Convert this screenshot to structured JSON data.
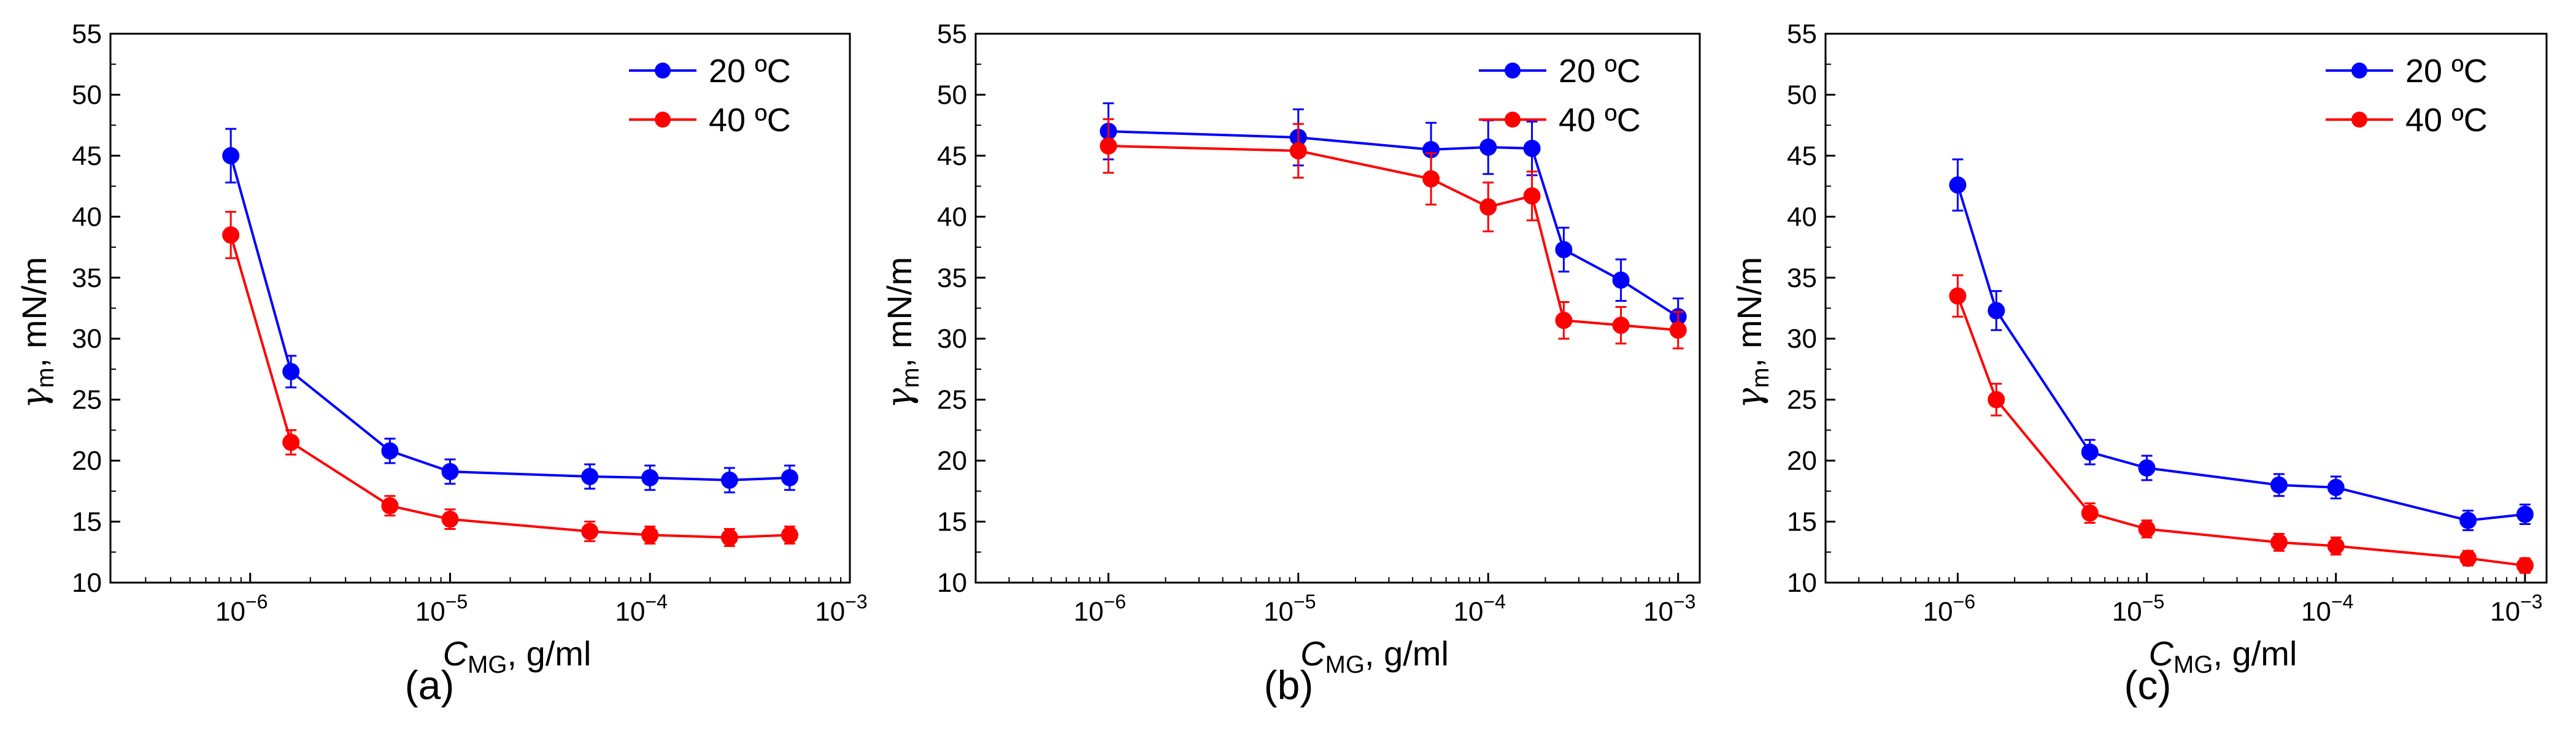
{
  "figure": {
    "panels": [
      "(a)",
      "(b)",
      "(c)"
    ]
  },
  "chart_data": [
    {
      "panel_label": "(a)",
      "type": "line",
      "x_scale": "log",
      "xlim": [
        2e-07,
        0.001
      ],
      "ylim": [
        10,
        55
      ],
      "x_ticks": [
        1e-06,
        1e-05,
        0.0001,
        0.001
      ],
      "x_tick_labels": [
        "10",
        "10",
        "10",
        "10"
      ],
      "x_tick_exponents": [
        "−6",
        "−5",
        "−4",
        "−3"
      ],
      "y_ticks": [
        10,
        15,
        20,
        25,
        30,
        35,
        40,
        45,
        50,
        55
      ],
      "y_tick_labels": [
        "10",
        "15",
        "20",
        "25",
        "30",
        "35",
        "40",
        "45",
        "50",
        "55"
      ],
      "xlabel": "C",
      "xlabel_sub": "MG",
      "xlabel_unit": ", g/ml",
      "ylabel": "γ",
      "ylabel_sub": "m",
      "ylabel_unit": ", mN/m",
      "legend_position": "top-right",
      "series": [
        {
          "name": "20 ºC",
          "color": "#0000ff",
          "x": [
            8e-07,
            1.6e-06,
            5e-06,
            1e-05,
            5e-05,
            0.0001,
            0.00025,
            0.0005
          ],
          "y": [
            45.0,
            27.3,
            20.8,
            19.1,
            18.7,
            18.6,
            18.4,
            18.6
          ],
          "err": [
            2.2,
            1.3,
            1.0,
            1.0,
            1.0,
            1.0,
            1.0,
            1.0
          ]
        },
        {
          "name": "40 ºC",
          "color": "#ff0000",
          "x": [
            8e-07,
            1.6e-06,
            5e-06,
            1e-05,
            5e-05,
            0.0001,
            0.00025,
            0.0005
          ],
          "y": [
            38.5,
            21.5,
            16.3,
            15.2,
            14.2,
            13.9,
            13.7,
            13.9
          ],
          "err": [
            1.9,
            1.0,
            0.8,
            0.8,
            0.8,
            0.7,
            0.7,
            0.7
          ]
        }
      ]
    },
    {
      "panel_label": "(b)",
      "type": "line",
      "x_scale": "log",
      "xlim": [
        2e-07,
        0.0013
      ],
      "ylim": [
        10,
        55
      ],
      "x_ticks": [
        1e-06,
        1e-05,
        0.0001,
        0.001
      ],
      "x_tick_labels": [
        "10",
        "10",
        "10",
        "10"
      ],
      "x_tick_exponents": [
        "−6",
        "−5",
        "−4",
        "−3"
      ],
      "y_ticks": [
        10,
        15,
        20,
        25,
        30,
        35,
        40,
        45,
        50,
        55
      ],
      "y_tick_labels": [
        "10",
        "15",
        "20",
        "25",
        "30",
        "35",
        "40",
        "45",
        "50",
        "55"
      ],
      "xlabel": "C",
      "xlabel_sub": "MG",
      "xlabel_unit": ", g/ml",
      "ylabel": "γ",
      "ylabel_sub": "m",
      "ylabel_unit": ", mN/m",
      "legend_position": "top-right",
      "series": [
        {
          "name": "20 ºC",
          "color": "#0000ff",
          "x": [
            1e-06,
            1e-05,
            5e-05,
            0.0001,
            0.00017,
            0.00025,
            0.0005,
            0.001
          ],
          "y": [
            47.0,
            46.5,
            45.5,
            45.7,
            45.6,
            37.3,
            34.8,
            31.8
          ],
          "err": [
            2.3,
            2.3,
            2.2,
            2.2,
            2.2,
            1.8,
            1.7,
            1.5
          ]
        },
        {
          "name": "40 ºC",
          "color": "#ff0000",
          "x": [
            1e-06,
            1e-05,
            5e-05,
            0.0001,
            0.00017,
            0.00025,
            0.0005,
            0.001
          ],
          "y": [
            45.8,
            45.4,
            43.1,
            40.8,
            41.7,
            31.5,
            31.1,
            30.7
          ],
          "err": [
            2.2,
            2.2,
            2.1,
            2.0,
            2.0,
            1.5,
            1.5,
            1.5
          ]
        }
      ]
    },
    {
      "panel_label": "(c)",
      "type": "line",
      "x_scale": "log",
      "xlim": [
        2e-07,
        0.0013
      ],
      "ylim": [
        10,
        55
      ],
      "x_ticks": [
        1e-06,
        1e-05,
        0.0001,
        0.001
      ],
      "x_tick_labels": [
        "10",
        "10",
        "10",
        "10"
      ],
      "x_tick_exponents": [
        "−6",
        "−5",
        "−4",
        "−3"
      ],
      "y_ticks": [
        10,
        15,
        20,
        25,
        30,
        35,
        40,
        45,
        50,
        55
      ],
      "y_tick_labels": [
        "10",
        "15",
        "20",
        "25",
        "30",
        "35",
        "40",
        "45",
        "50",
        "55"
      ],
      "xlabel": "C",
      "xlabel_sub": "MG",
      "xlabel_unit": ", g/ml",
      "ylabel": "γ",
      "ylabel_sub": "m",
      "ylabel_unit": ", mN/m",
      "legend_position": "top-right",
      "series": [
        {
          "name": "20 ºC",
          "color": "#0000ff",
          "x": [
            1e-06,
            1.6e-06,
            5e-06,
            1e-05,
            5e-05,
            0.0001,
            0.0005,
            0.001
          ],
          "y": [
            42.6,
            32.3,
            20.7,
            19.4,
            18.0,
            17.8,
            15.1,
            15.6
          ],
          "err": [
            2.1,
            1.6,
            1.0,
            1.0,
            0.9,
            0.9,
            0.8,
            0.8
          ]
        },
        {
          "name": "40 ºC",
          "color": "#ff0000",
          "x": [
            1e-06,
            1.6e-06,
            5e-06,
            1e-05,
            5e-05,
            0.0001,
            0.0005,
            0.001
          ],
          "y": [
            33.5,
            25.0,
            15.7,
            14.4,
            13.3,
            13.0,
            12.0,
            11.4
          ],
          "err": [
            1.7,
            1.3,
            0.8,
            0.7,
            0.7,
            0.7,
            0.6,
            0.6
          ]
        }
      ]
    }
  ]
}
